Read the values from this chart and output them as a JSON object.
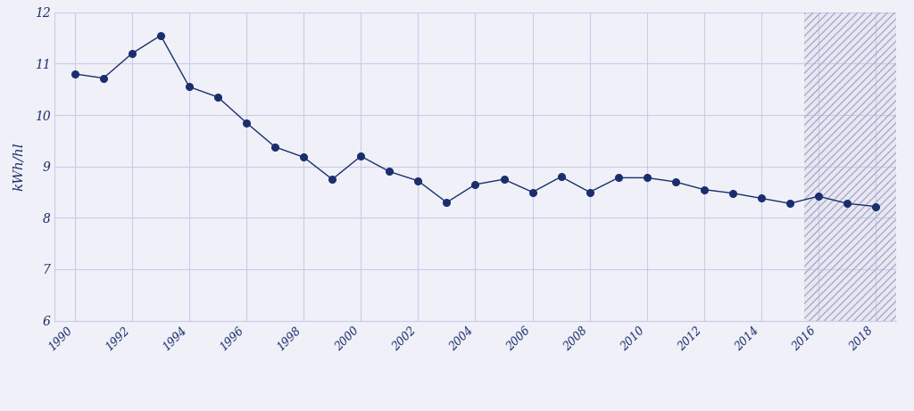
{
  "years": [
    1990,
    1991,
    1992,
    1993,
    1994,
    1995,
    1996,
    1997,
    1998,
    1999,
    2000,
    2001,
    2002,
    2003,
    2004,
    2005,
    2006,
    2007,
    2008,
    2009,
    2010,
    2011,
    2012,
    2013,
    2014,
    2015,
    2016,
    2017,
    2018
  ],
  "values": [
    10.8,
    10.72,
    11.2,
    11.55,
    10.55,
    10.35,
    9.85,
    9.38,
    9.18,
    8.75,
    9.2,
    8.9,
    8.72,
    8.3,
    8.65,
    8.75,
    8.5,
    8.8,
    8.5,
    8.78,
    8.78,
    8.7,
    8.55,
    8.48,
    8.38,
    8.28,
    8.42,
    8.28,
    8.22
  ],
  "line_color": "#1a2e6e",
  "marker_color": "#1a2e6e",
  "background_color": "#f0f0f8",
  "grid_color": "#c8cce8",
  "axis_label_color": "#1a2e6e",
  "ylim": [
    6,
    12
  ],
  "yticks": [
    6,
    7,
    8,
    9,
    10,
    11,
    12
  ],
  "ylabel": "kWh/hl",
  "xlim_left": 1989.3,
  "xlim_right": 2018.7,
  "hatch_start": 2015.5,
  "hatch_end": 2018.7,
  "xticks": [
    1990,
    1992,
    1994,
    1996,
    1998,
    2000,
    2002,
    2004,
    2006,
    2008,
    2010,
    2012,
    2014,
    2016,
    2018
  ]
}
